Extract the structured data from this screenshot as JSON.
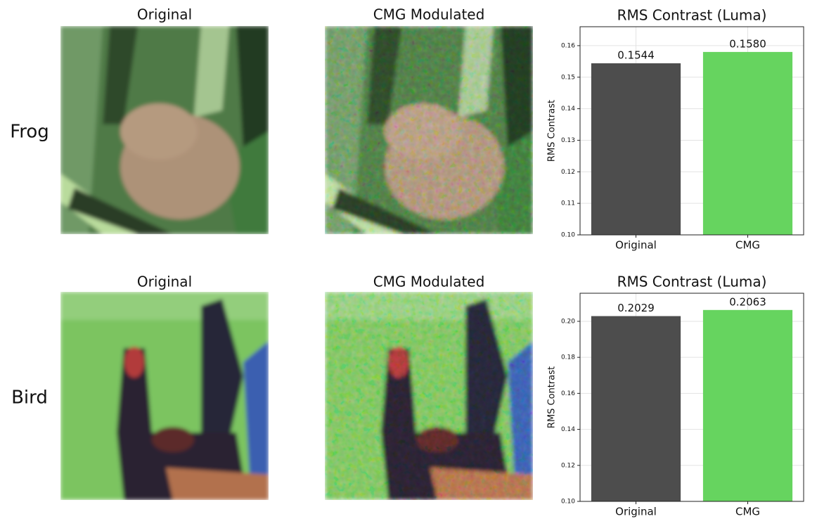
{
  "rows": [
    {
      "label": "Frog",
      "images": [
        "Original",
        "CMG Modulated"
      ]
    },
    {
      "label": "Bird",
      "images": [
        "Original",
        "CMG Modulated"
      ]
    }
  ],
  "chart_data": [
    {
      "type": "bar",
      "title": "RMS Contrast (Luma)",
      "y_label": "RMS Contrast",
      "categories": [
        "Original",
        "CMG"
      ],
      "values": [
        0.1544,
        0.158
      ],
      "value_labels": [
        "0.1544",
        "0.1580"
      ],
      "colors": [
        "#4d4d4d",
        "#66d45f"
      ],
      "ylim": [
        0.1,
        0.166
      ],
      "yticks": [
        {
          "value": 0.1,
          "label": "0.10"
        },
        0.11,
        0.12,
        0.13,
        0.14,
        0.15,
        0.16
      ],
      "grid": true
    },
    {
      "type": "bar",
      "title": "RMS Contrast (Luma)",
      "y_label": "RMS Contrast",
      "categories": [
        "Original",
        "CMG"
      ],
      "values": [
        0.2029,
        0.2063
      ],
      "value_labels": [
        "0.2029",
        "0.2063"
      ],
      "colors": [
        "#4d4d4d",
        "#66d45f"
      ],
      "ylim": [
        0.1,
        0.2156
      ],
      "yticks": [
        {
          "value": 0.1,
          "label": "0.10"
        },
        0.12,
        0.14,
        0.16,
        0.18,
        {
          "value": 0.2,
          "label": "0.20"
        }
      ],
      "grid": true
    }
  ]
}
